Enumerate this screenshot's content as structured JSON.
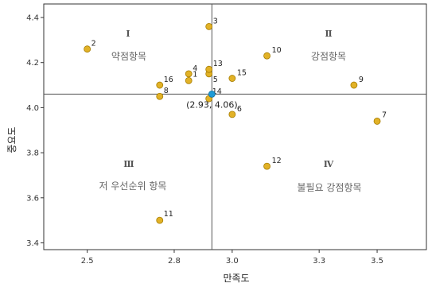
{
  "chart_data": {
    "type": "scatter",
    "xlabel": "만족도",
    "ylabel": "중요도",
    "xlim": [
      2.35,
      3.67
    ],
    "ylim": [
      3.37,
      4.46
    ],
    "xticks": [
      "2.5",
      "2.8",
      "3.0",
      "3.3",
      "3.5"
    ],
    "xtick_values": [
      2.5,
      2.8,
      3.0,
      3.3,
      3.5
    ],
    "yticks": [
      "3.4",
      "3.6",
      "3.8",
      "4.0",
      "4.2",
      "4.4"
    ],
    "ytick_values": [
      3.4,
      3.6,
      3.8,
      4.0,
      4.2,
      4.4
    ],
    "points": [
      {
        "label": "1",
        "x": 2.85,
        "y": 4.12
      },
      {
        "label": "2",
        "x": 2.5,
        "y": 4.26
      },
      {
        "label": "3",
        "x": 2.92,
        "y": 4.36
      },
      {
        "label": "4",
        "x": 2.85,
        "y": 4.15
      },
      {
        "label": "5",
        "x": 2.92,
        "y": 4.15
      },
      {
        "label": "6",
        "x": 3.0,
        "y": 3.97
      },
      {
        "label": "7",
        "x": 3.5,
        "y": 3.94
      },
      {
        "label": "8",
        "x": 2.75,
        "y": 4.05
      },
      {
        "label": "9",
        "x": 3.42,
        "y": 4.1
      },
      {
        "label": "10",
        "x": 3.12,
        "y": 4.23
      },
      {
        "label": "11",
        "x": 2.75,
        "y": 3.5
      },
      {
        "label": "12",
        "x": 3.12,
        "y": 3.74
      },
      {
        "label": "13",
        "x": 2.92,
        "y": 4.17
      },
      {
        "label": "14",
        "x": 2.92,
        "y": 4.04
      },
      {
        "label": "15",
        "x": 3.0,
        "y": 4.13
      },
      {
        "label": "16",
        "x": 2.75,
        "y": 4.1
      }
    ],
    "reference_point": {
      "x": 2.93,
      "y": 4.06,
      "label": "(2.93, 4.06)"
    },
    "quadrants": [
      {
        "numeral": "Ⅰ",
        "name": "약점항목"
      },
      {
        "numeral": "Ⅱ",
        "name": "강점항목"
      },
      {
        "numeral": "Ⅲ",
        "name": "저 우선순위 항목"
      },
      {
        "numeral": "Ⅳ",
        "name": "불필요 강점항목"
      }
    ],
    "grid": false,
    "colors": {
      "point": "#e2b227",
      "point_stroke": "#a67c00",
      "reference": "#1f9bd6",
      "axis": "#333333"
    }
  }
}
